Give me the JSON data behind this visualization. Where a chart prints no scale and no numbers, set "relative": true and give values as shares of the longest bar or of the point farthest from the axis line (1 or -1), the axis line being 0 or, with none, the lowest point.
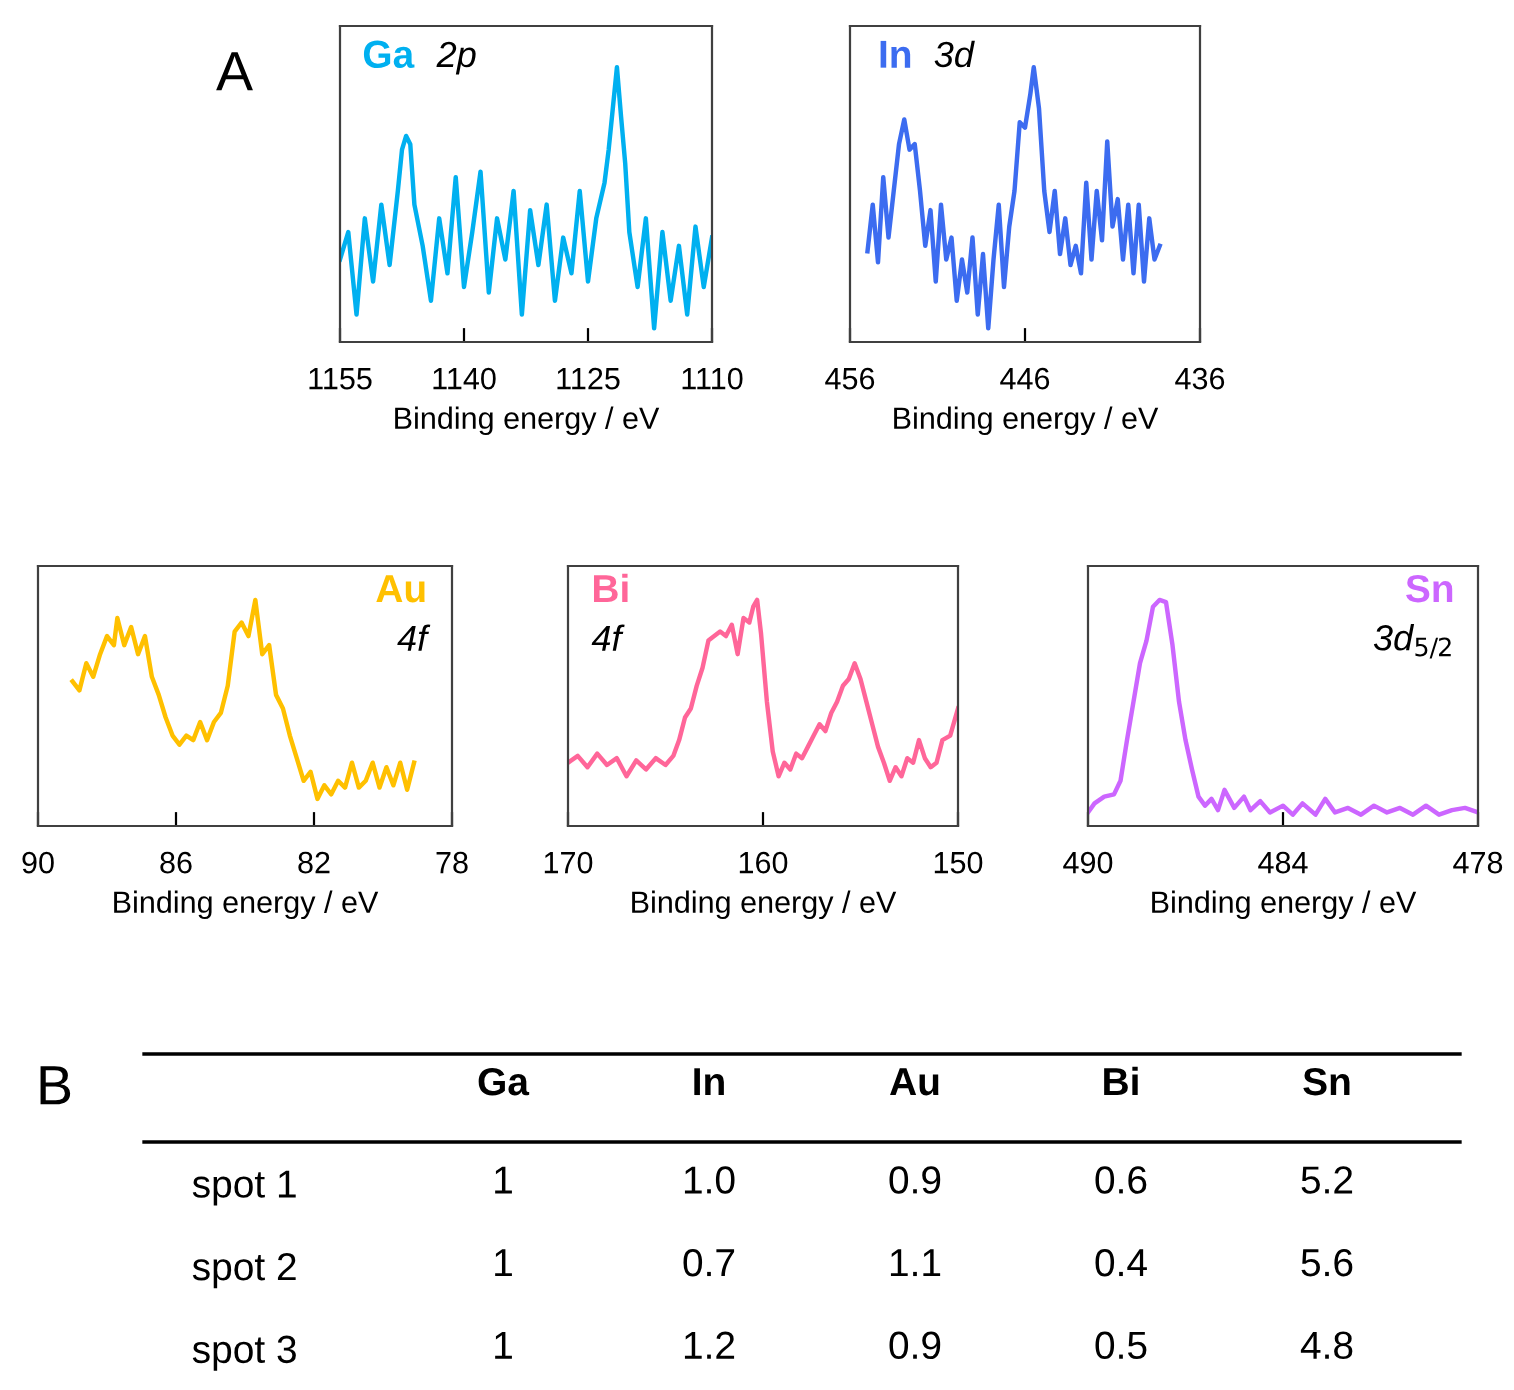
{
  "chart_data": [
    {
      "type": "line",
      "xlabel": "Binding energy / eV",
      "relative": true,
      "xlim": [
        1155,
        1110
      ],
      "xticks": [
        1155,
        1140,
        1125,
        1110
      ],
      "tick_labels": "x",
      "annotations": [
        "Ga",
        "2p",
        "A"
      ],
      "x": [
        1155,
        1154,
        1153,
        1152,
        1151,
        1150,
        1149,
        1148,
        1147.5,
        1147,
        1146.5,
        1146,
        1145,
        1144,
        1143,
        1142,
        1141,
        1140,
        1139,
        1138,
        1137,
        1136,
        1135,
        1134,
        1133,
        1132,
        1131,
        1130,
        1129,
        1128,
        1127,
        1126,
        1125,
        1124,
        1123,
        1122.5,
        1122,
        1121.5,
        1121,
        1120.5,
        1120,
        1119,
        1118,
        1117,
        1116,
        1115,
        1114,
        1113,
        1112,
        1111,
        1110
      ],
      "series": [
        {
          "color": "#00b0f0",
          "values": [
            0.3,
            0.4,
            0.1,
            0.45,
            0.22,
            0.5,
            0.28,
            0.55,
            0.7,
            0.75,
            0.72,
            0.5,
            0.35,
            0.15,
            0.45,
            0.25,
            0.6,
            0.2,
            0.4,
            0.62,
            0.18,
            0.45,
            0.3,
            0.55,
            0.1,
            0.48,
            0.28,
            0.5,
            0.15,
            0.38,
            0.25,
            0.55,
            0.22,
            0.45,
            0.58,
            0.7,
            0.85,
            1.0,
            0.82,
            0.65,
            0.4,
            0.2,
            0.45,
            0.05,
            0.4,
            0.15,
            0.35,
            0.1,
            0.42,
            0.2,
            0.38
          ]
        }
      ]
    },
    {
      "type": "line",
      "xlabel": "Binding energy / eV",
      "relative": true,
      "xlim": [
        456,
        436
      ],
      "xticks": [
        456,
        446,
        436
      ],
      "tick_labels": "x",
      "annotations": [
        "In",
        "3d"
      ],
      "x": [
        455,
        454.7,
        454.4,
        454.1,
        453.8,
        453.5,
        453.2,
        452.9,
        452.6,
        452.3,
        452,
        451.7,
        451.4,
        451.1,
        450.8,
        450.5,
        450.2,
        449.9,
        449.6,
        449.3,
        449,
        448.7,
        448.4,
        448.1,
        447.8,
        447.5,
        447.2,
        446.9,
        446.6,
        446.3,
        446,
        445.7,
        445.5,
        445.2,
        444.9,
        444.6,
        444.3,
        444,
        443.7,
        443.4,
        443.1,
        442.8,
        442.5,
        442.2,
        441.9,
        441.6,
        441.3,
        441,
        440.7,
        440.4,
        440.1,
        439.8,
        439.5,
        439.2,
        438.9,
        438.6,
        438.3
      ],
      "series": [
        {
          "color": "#3c6cf0",
          "values": [
            0.33,
            0.5,
            0.29,
            0.6,
            0.38,
            0.55,
            0.72,
            0.81,
            0.7,
            0.72,
            0.55,
            0.35,
            0.48,
            0.22,
            0.5,
            0.3,
            0.38,
            0.15,
            0.3,
            0.18,
            0.38,
            0.1,
            0.32,
            0.05,
            0.3,
            0.5,
            0.2,
            0.42,
            0.55,
            0.8,
            0.78,
            0.9,
            1.0,
            0.85,
            0.55,
            0.4,
            0.55,
            0.32,
            0.45,
            0.28,
            0.35,
            0.25,
            0.58,
            0.3,
            0.55,
            0.37,
            0.73,
            0.42,
            0.52,
            0.3,
            0.5,
            0.25,
            0.5,
            0.22,
            0.45,
            0.3,
            0.35
          ]
        }
      ]
    },
    {
      "type": "line",
      "xlabel": "Binding energy / eV",
      "relative": true,
      "xlim": [
        90,
        78
      ],
      "xticks": [
        90,
        86,
        82,
        78
      ],
      "tick_labels": "x",
      "annotations": [
        "Au",
        "4f"
      ],
      "x": [
        89,
        88.8,
        88.6,
        88.4,
        88.2,
        88,
        87.8,
        87.7,
        87.5,
        87.3,
        87.1,
        86.9,
        86.7,
        86.5,
        86.3,
        86.1,
        85.9,
        85.7,
        85.5,
        85.3,
        85.1,
        84.9,
        84.7,
        84.5,
        84.3,
        84.1,
        83.9,
        83.7,
        83.5,
        83.3,
        83.1,
        82.9,
        82.7,
        82.5,
        82.3,
        82.1,
        81.9,
        81.7,
        81.5,
        81.3,
        81.1,
        80.9,
        80.7,
        80.5,
        80.3,
        80.1,
        79.9,
        79.7,
        79.5,
        79.3,
        79.1
      ],
      "series": [
        {
          "color": "#ffc000",
          "values": [
            0.64,
            0.6,
            0.72,
            0.66,
            0.76,
            0.84,
            0.8,
            0.92,
            0.8,
            0.88,
            0.76,
            0.84,
            0.66,
            0.58,
            0.48,
            0.4,
            0.36,
            0.4,
            0.38,
            0.46,
            0.38,
            0.46,
            0.5,
            0.62,
            0.86,
            0.9,
            0.84,
            1.0,
            0.76,
            0.8,
            0.58,
            0.52,
            0.4,
            0.3,
            0.2,
            0.24,
            0.12,
            0.18,
            0.14,
            0.2,
            0.17,
            0.28,
            0.17,
            0.2,
            0.28,
            0.17,
            0.26,
            0.18,
            0.28,
            0.16,
            0.28
          ]
        }
      ]
    },
    {
      "type": "line",
      "xlabel": "Binding energy / eV",
      "relative": true,
      "xlim": [
        170,
        150
      ],
      "xticks": [
        170,
        160,
        150
      ],
      "tick_labels": "x",
      "annotations": [
        "Bi",
        "4f"
      ],
      "x": [
        170,
        169.5,
        169,
        168.5,
        168,
        167.5,
        167,
        166.5,
        166,
        165.5,
        165,
        164.6,
        164.3,
        164,
        163.7,
        163.4,
        163.1,
        162.8,
        162.5,
        162.2,
        161.9,
        161.6,
        161.3,
        161,
        160.7,
        160.5,
        160.3,
        160.1,
        159.8,
        159.5,
        159.2,
        158.9,
        158.6,
        158.3,
        158,
        157.7,
        157.4,
        157.1,
        156.8,
        156.5,
        156.2,
        155.9,
        155.6,
        155.3,
        155,
        154.7,
        154.4,
        154.1,
        153.8,
        153.5,
        153.2,
        152.9,
        152.6,
        152.3,
        152,
        151.7,
        151.4,
        151.1,
        150.8,
        150.4,
        150
      ],
      "series": [
        {
          "color": "#ff6699",
          "values": [
            0.28,
            0.31,
            0.26,
            0.32,
            0.27,
            0.3,
            0.22,
            0.29,
            0.25,
            0.3,
            0.27,
            0.31,
            0.38,
            0.48,
            0.52,
            0.62,
            0.7,
            0.82,
            0.84,
            0.86,
            0.84,
            0.89,
            0.76,
            0.92,
            0.9,
            0.97,
            1.0,
            0.85,
            0.55,
            0.33,
            0.22,
            0.28,
            0.25,
            0.32,
            0.3,
            0.35,
            0.4,
            0.45,
            0.42,
            0.5,
            0.55,
            0.62,
            0.65,
            0.72,
            0.65,
            0.55,
            0.45,
            0.35,
            0.28,
            0.2,
            0.26,
            0.22,
            0.3,
            0.28,
            0.38,
            0.3,
            0.26,
            0.28,
            0.38,
            0.4,
            0.52
          ]
        }
      ]
    },
    {
      "type": "line",
      "xlabel": "Binding energy / eV",
      "relative": true,
      "xlim": [
        490,
        478
      ],
      "xticks": [
        490,
        484,
        478
      ],
      "tick_labels": "x",
      "annotations": [
        "Sn",
        "3d$_{5/2}$"
      ],
      "x": [
        490,
        489.8,
        489.5,
        489.2,
        489,
        488.8,
        488.6,
        488.4,
        488.2,
        488,
        487.8,
        487.6,
        487.4,
        487.2,
        487,
        486.8,
        486.6,
        486.4,
        486.2,
        486,
        485.8,
        485.5,
        485.2,
        485,
        484.7,
        484.4,
        484,
        483.7,
        483.4,
        483,
        482.7,
        482.4,
        482,
        481.6,
        481.2,
        480.8,
        480.4,
        480,
        479.6,
        479.2,
        478.8,
        478.4,
        478
      ],
      "series": [
        {
          "color": "#cc66ff",
          "values": [
            0.06,
            0.1,
            0.13,
            0.14,
            0.2,
            0.38,
            0.55,
            0.72,
            0.82,
            0.97,
            1.0,
            0.99,
            0.8,
            0.55,
            0.38,
            0.25,
            0.13,
            0.09,
            0.12,
            0.07,
            0.16,
            0.08,
            0.13,
            0.07,
            0.11,
            0.06,
            0.09,
            0.05,
            0.1,
            0.05,
            0.12,
            0.06,
            0.08,
            0.05,
            0.09,
            0.06,
            0.08,
            0.05,
            0.09,
            0.05,
            0.07,
            0.08,
            0.06
          ]
        }
      ]
    },
    {
      "type": "heatmap",
      "data_labels": true,
      "annotations": [
        "B"
      ],
      "categories": [
        "Ga",
        "In",
        "Au",
        "Bi",
        "Sn"
      ],
      "y_categories": [
        "spot 1",
        "spot 2",
        "spot 3"
      ],
      "cells": [
        [
          1,
          1.0,
          0.9,
          0.6,
          5.2
        ],
        [
          1,
          0.7,
          1.1,
          0.4,
          5.6
        ],
        [
          1,
          1.2,
          0.9,
          0.5,
          4.8
        ]
      ],
      "cell_labels": [
        [
          "1",
          "1.0",
          "0.9",
          "0.6",
          "5.2"
        ],
        [
          "1",
          "0.7",
          "1.1",
          "0.4",
          "5.6"
        ],
        [
          "1",
          "1.2",
          "0.9",
          "0.5",
          "4.8"
        ]
      ]
    }
  ]
}
